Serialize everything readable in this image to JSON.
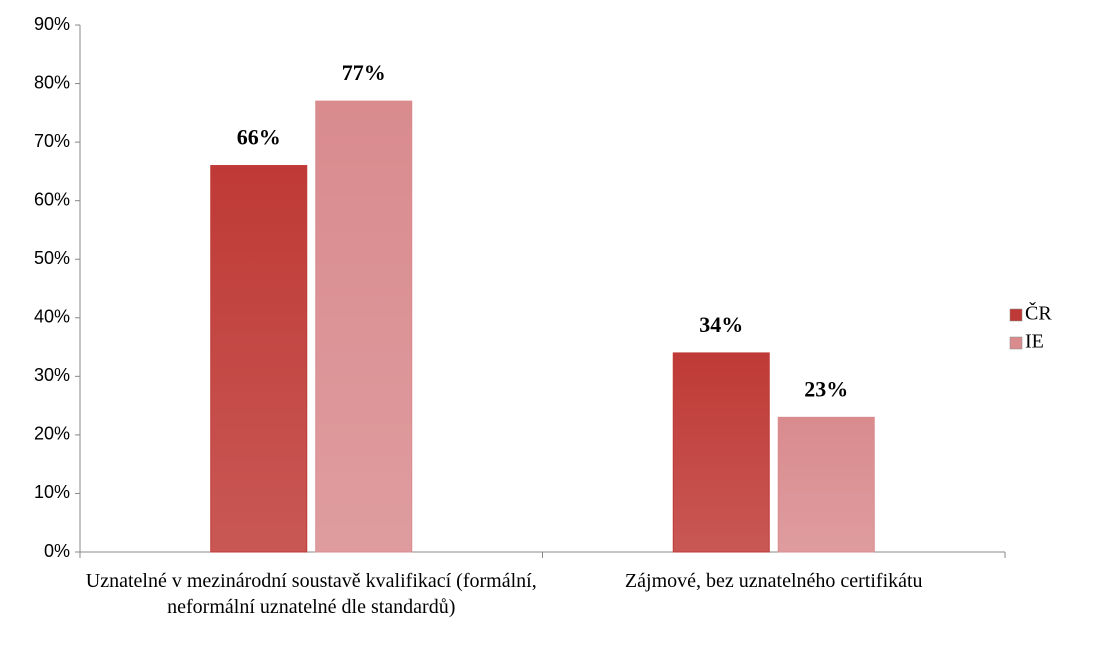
{
  "chart_data": {
    "type": "bar",
    "categories": [
      "Uznatelné v mezinárodní soustavě kvalifikací (formální, neformální uznatelné dle standardů)",
      "Zájmové, bez uznatelného certifikátu"
    ],
    "series": [
      {
        "name": "ČR",
        "color": "#bf3a36",
        "values": [
          66,
          34
        ],
        "value_labels": [
          "66%",
          "34%"
        ]
      },
      {
        "name": "IE",
        "color": "#d98b8e",
        "values": [
          77,
          23
        ],
        "value_labels": [
          "77%",
          "23%"
        ]
      }
    ],
    "ylim": [
      0,
      90
    ],
    "yticks": [
      {
        "value": 0,
        "label": "0%"
      },
      {
        "value": 10,
        "label": "10%"
      },
      {
        "value": 20,
        "label": "20%"
      },
      {
        "value": 30,
        "label": "30%"
      },
      {
        "value": 40,
        "label": "40%"
      },
      {
        "value": 50,
        "label": "50%"
      },
      {
        "value": 60,
        "label": "60%"
      },
      {
        "value": 70,
        "label": "70%"
      },
      {
        "value": 80,
        "label": "80%"
      },
      {
        "value": 90,
        "label": "90%"
      }
    ],
    "legend": "right"
  }
}
